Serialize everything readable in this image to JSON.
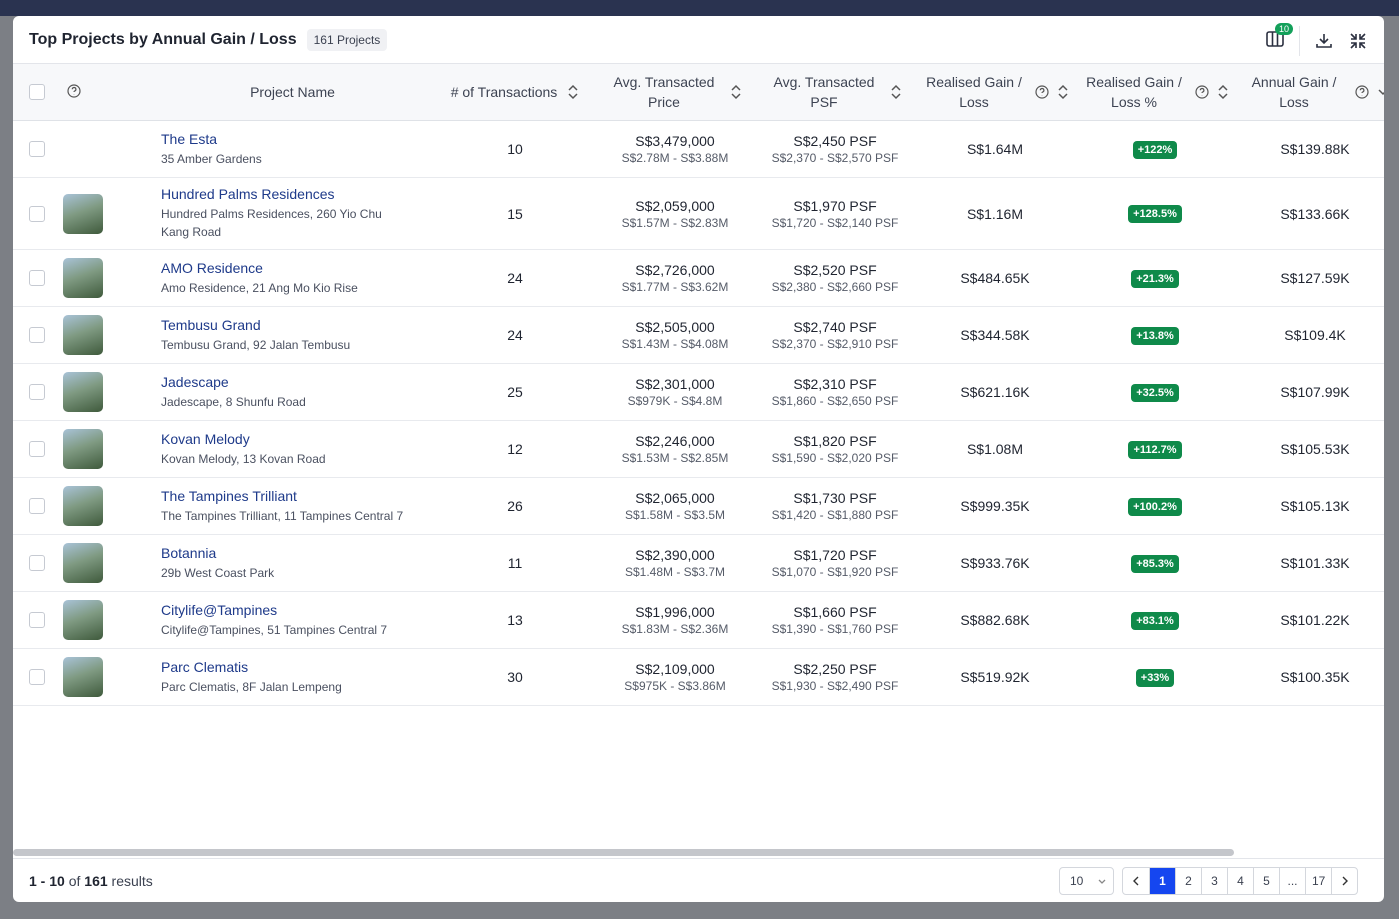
{
  "header": {
    "title": "Top Projects by Annual Gain / Loss",
    "badge": "161 Projects",
    "columns_badge": "10"
  },
  "table": {
    "columns": [
      "Project Name",
      "# of Transactions",
      "Avg. Transacted Price",
      "Avg. Transacted PSF",
      "Realised Gain / Loss",
      "Realised Gain / Loss %",
      "Annual Gain / Loss"
    ],
    "rows": [
      {
        "name": "The Esta",
        "address": "35 Amber Gardens",
        "transactions": 10,
        "price": "S$3,479,000",
        "price_range": "S$2.78M - S$3.88M",
        "psf": "S$2,450 PSF",
        "psf_range": "S$2,370 - S$2,570 PSF",
        "gain": "S$1.64M",
        "gain_pct": "+122%",
        "annual": "S$139.88K"
      },
      {
        "name": "Hundred Palms Residences",
        "address": "Hundred Palms Residences, 260 Yio Chu Kang Road",
        "transactions": 15,
        "price": "S$2,059,000",
        "price_range": "S$1.57M - S$2.83M",
        "psf": "S$1,970 PSF",
        "psf_range": "S$1,720 - S$2,140 PSF",
        "gain": "S$1.16M",
        "gain_pct": "+128.5%",
        "annual": "S$133.66K"
      },
      {
        "name": "AMO Residence",
        "address": "Amo Residence, 21 Ang Mo Kio Rise",
        "transactions": 24,
        "price": "S$2,726,000",
        "price_range": "S$1.77M - S$3.62M",
        "psf": "S$2,520 PSF",
        "psf_range": "S$2,380 - S$2,660 PSF",
        "gain": "S$484.65K",
        "gain_pct": "+21.3%",
        "annual": "S$127.59K"
      },
      {
        "name": "Tembusu Grand",
        "address": "Tembusu Grand, 92 Jalan Tembusu",
        "transactions": 24,
        "price": "S$2,505,000",
        "price_range": "S$1.43M - S$4.08M",
        "psf": "S$2,740 PSF",
        "psf_range": "S$2,370 - S$2,910 PSF",
        "gain": "S$344.58K",
        "gain_pct": "+13.8%",
        "annual": "S$109.4K"
      },
      {
        "name": "Jadescape",
        "address": "Jadescape, 8 Shunfu Road",
        "transactions": 25,
        "price": "S$2,301,000",
        "price_range": "S$979K - S$4.8M",
        "psf": "S$2,310 PSF",
        "psf_range": "S$1,860 - S$2,650 PSF",
        "gain": "S$621.16K",
        "gain_pct": "+32.5%",
        "annual": "S$107.99K"
      },
      {
        "name": "Kovan Melody",
        "address": "Kovan Melody, 13 Kovan Road",
        "transactions": 12,
        "price": "S$2,246,000",
        "price_range": "S$1.53M - S$2.85M",
        "psf": "S$1,820 PSF",
        "psf_range": "S$1,590 - S$2,020 PSF",
        "gain": "S$1.08M",
        "gain_pct": "+112.7%",
        "annual": "S$105.53K"
      },
      {
        "name": "The Tampines Trilliant",
        "address": "The Tampines Trilliant, 11 Tampines Central 7",
        "transactions": 26,
        "price": "S$2,065,000",
        "price_range": "S$1.58M - S$3.5M",
        "psf": "S$1,730 PSF",
        "psf_range": "S$1,420 - S$1,880 PSF",
        "gain": "S$999.35K",
        "gain_pct": "+100.2%",
        "annual": "S$105.13K"
      },
      {
        "name": "Botannia",
        "address": "29b West Coast Park",
        "transactions": 11,
        "price": "S$2,390,000",
        "price_range": "S$1.48M - S$3.7M",
        "psf": "S$1,720 PSF",
        "psf_range": "S$1,070 - S$1,920 PSF",
        "gain": "S$933.76K",
        "gain_pct": "+85.3%",
        "annual": "S$101.33K"
      },
      {
        "name": "Citylife@Tampines",
        "address": "Citylife@Tampines, 51 Tampines Central 7",
        "transactions": 13,
        "price": "S$1,996,000",
        "price_range": "S$1.83M - S$2.36M",
        "psf": "S$1,660 PSF",
        "psf_range": "S$1,390 - S$1,760 PSF",
        "gain": "S$882.68K",
        "gain_pct": "+83.1%",
        "annual": "S$101.22K"
      },
      {
        "name": "Parc Clematis",
        "address": "Parc Clematis, 8F Jalan Lempeng",
        "transactions": 30,
        "price": "S$2,109,000",
        "price_range": "S$975K - S$3.86M",
        "psf": "S$2,250 PSF",
        "psf_range": "S$1,930 - S$2,490 PSF",
        "gain": "S$519.92K",
        "gain_pct": "+33%",
        "annual": "S$100.35K"
      }
    ]
  },
  "footer": {
    "range": "1 - 10",
    "of": "of",
    "total": "161",
    "results": "results",
    "page_size": "10",
    "pages": [
      "1",
      "2",
      "3",
      "4",
      "5",
      "...",
      "17"
    ]
  }
}
